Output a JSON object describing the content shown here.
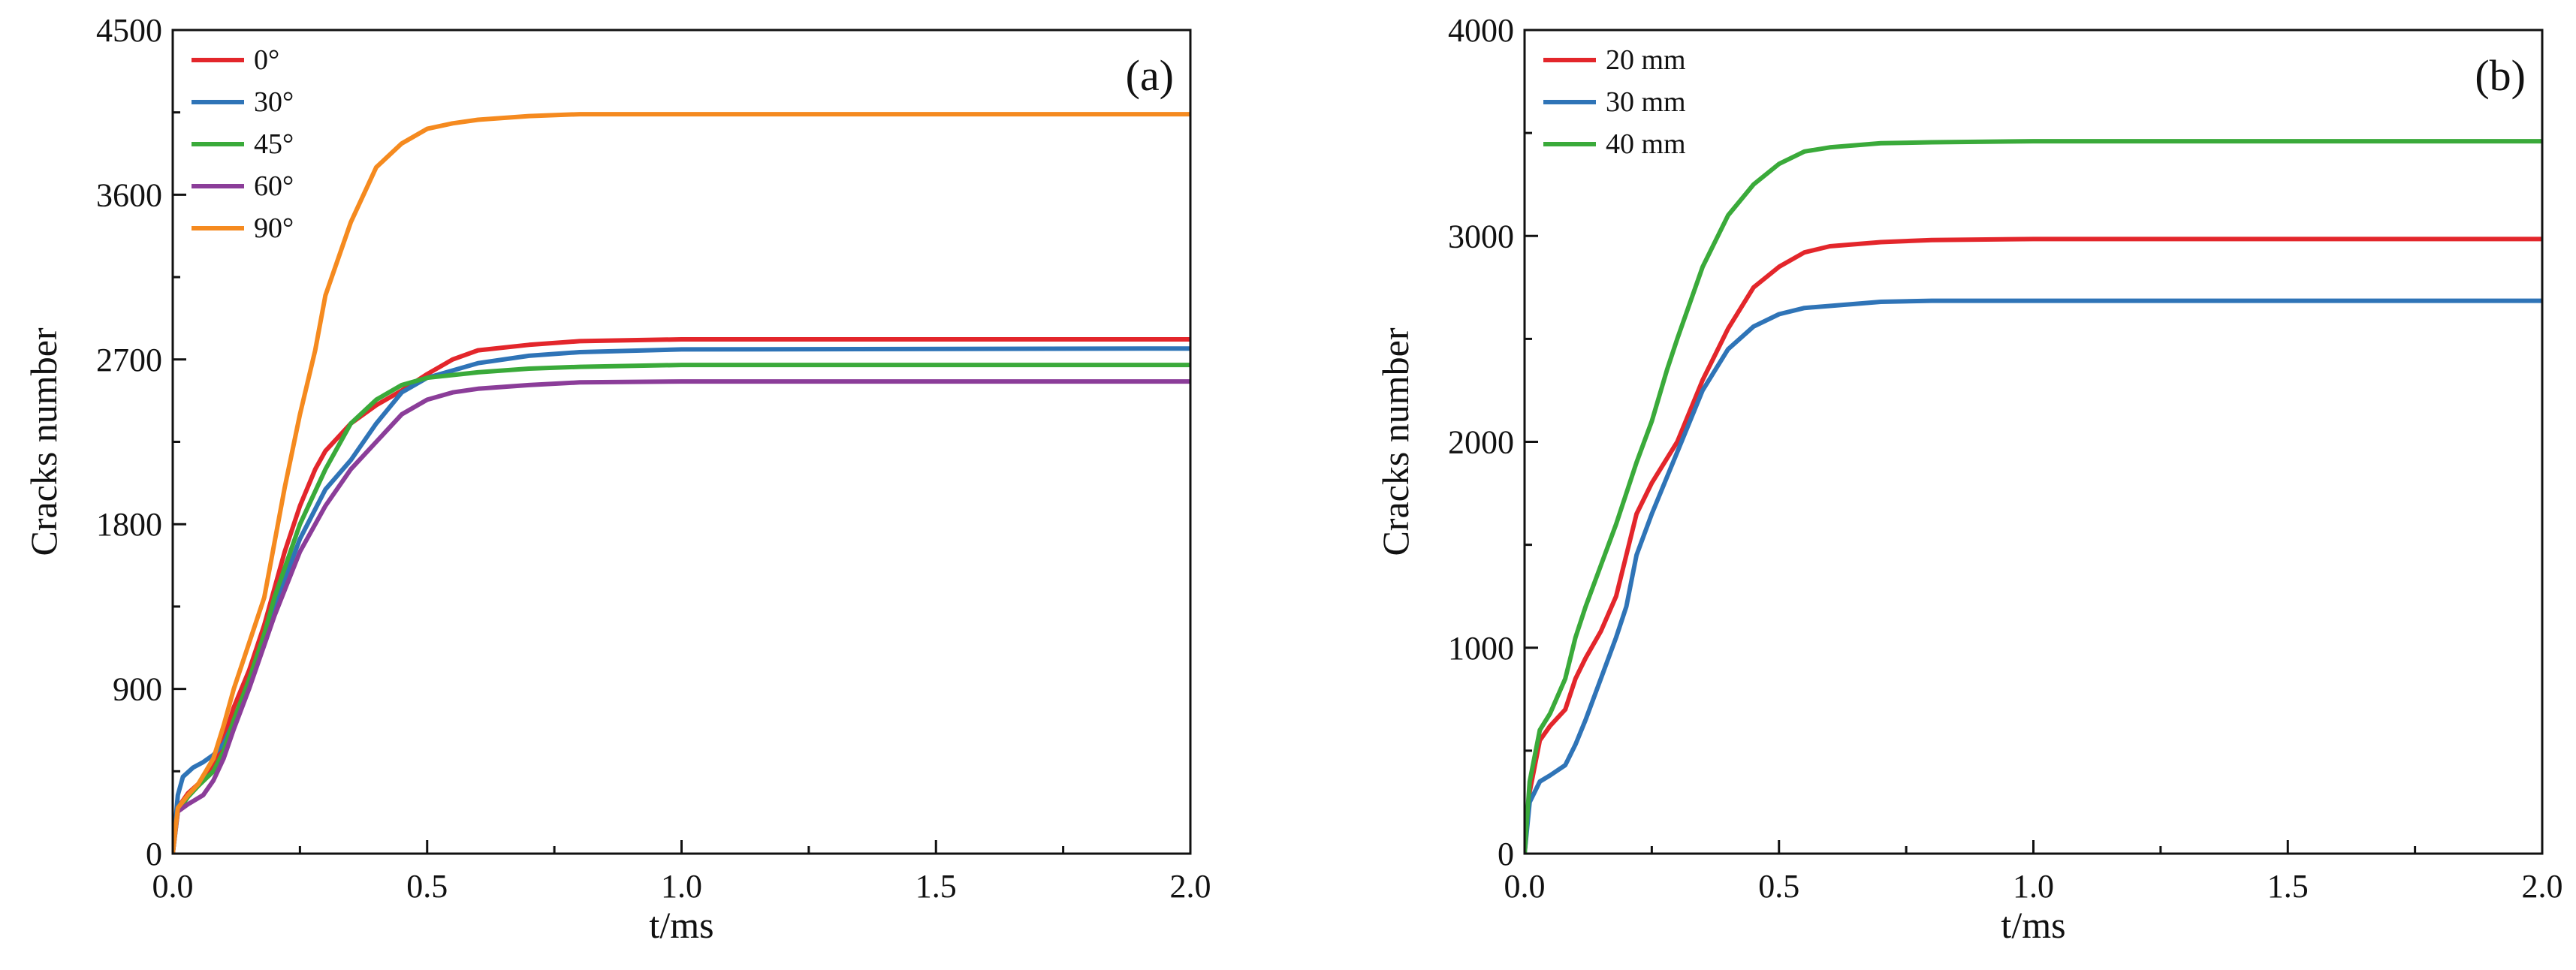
{
  "chart_data": [
    {
      "type": "line",
      "panel_label": "(a)",
      "xlabel": "t/ms",
      "ylabel": "Cracks number",
      "xlim": [
        0,
        2.0
      ],
      "ylim": [
        0,
        4500
      ],
      "xticks": [
        0.0,
        0.5,
        1.0,
        1.5,
        2.0
      ],
      "xtick_labels": [
        "0.0",
        "0.5",
        "1.0",
        "1.5",
        "2.0"
      ],
      "yticks": [
        0,
        900,
        1800,
        2700,
        3600,
        4500
      ],
      "ytick_labels": [
        "0",
        "900",
        "1800",
        "2700",
        "3600",
        "4500"
      ],
      "legend_position": "top-left",
      "grid": false,
      "series": [
        {
          "name": "0°",
          "color": "#e3262b",
          "points": [
            [
              0,
              0
            ],
            [
              0.01,
              250
            ],
            [
              0.03,
              330
            ],
            [
              0.05,
              380
            ],
            [
              0.08,
              480
            ],
            [
              0.1,
              620
            ],
            [
              0.12,
              800
            ],
            [
              0.15,
              1000
            ],
            [
              0.18,
              1250
            ],
            [
              0.2,
              1450
            ],
            [
              0.22,
              1650
            ],
            [
              0.25,
              1900
            ],
            [
              0.28,
              2100
            ],
            [
              0.3,
              2200
            ],
            [
              0.35,
              2350
            ],
            [
              0.4,
              2450
            ],
            [
              0.45,
              2530
            ],
            [
              0.5,
              2620
            ],
            [
              0.55,
              2700
            ],
            [
              0.6,
              2750
            ],
            [
              0.7,
              2780
            ],
            [
              0.8,
              2800
            ],
            [
              1.0,
              2810
            ],
            [
              2.0,
              2810
            ]
          ]
        },
        {
          "name": "30°",
          "color": "#2f74b7",
          "points": [
            [
              0,
              0
            ],
            [
              0.01,
              320
            ],
            [
              0.02,
              420
            ],
            [
              0.04,
              470
            ],
            [
              0.06,
              500
            ],
            [
              0.08,
              540
            ],
            [
              0.1,
              600
            ],
            [
              0.12,
              720
            ],
            [
              0.15,
              950
            ],
            [
              0.2,
              1350
            ],
            [
              0.25,
              1720
            ],
            [
              0.3,
              1990
            ],
            [
              0.35,
              2150
            ],
            [
              0.4,
              2350
            ],
            [
              0.45,
              2520
            ],
            [
              0.5,
              2600
            ],
            [
              0.6,
              2680
            ],
            [
              0.7,
              2720
            ],
            [
              0.8,
              2740
            ],
            [
              1.0,
              2755
            ],
            [
              2.0,
              2760
            ]
          ]
        },
        {
          "name": "45°",
          "color": "#3aaa3a",
          "points": [
            [
              0,
              0
            ],
            [
              0.01,
              230
            ],
            [
              0.03,
              310
            ],
            [
              0.05,
              370
            ],
            [
              0.08,
              450
            ],
            [
              0.1,
              560
            ],
            [
              0.12,
              730
            ],
            [
              0.15,
              950
            ],
            [
              0.18,
              1200
            ],
            [
              0.2,
              1400
            ],
            [
              0.25,
              1800
            ],
            [
              0.3,
              2100
            ],
            [
              0.35,
              2350
            ],
            [
              0.4,
              2480
            ],
            [
              0.45,
              2560
            ],
            [
              0.5,
              2600
            ],
            [
              0.6,
              2630
            ],
            [
              0.7,
              2650
            ],
            [
              0.8,
              2660
            ],
            [
              1.0,
              2670
            ],
            [
              2.0,
              2670
            ]
          ]
        },
        {
          "name": "60°",
          "color": "#8b3d99",
          "points": [
            [
              0,
              0
            ],
            [
              0.01,
              230
            ],
            [
              0.03,
              270
            ],
            [
              0.06,
              320
            ],
            [
              0.08,
              400
            ],
            [
              0.1,
              520
            ],
            [
              0.12,
              680
            ],
            [
              0.15,
              900
            ],
            [
              0.2,
              1300
            ],
            [
              0.25,
              1650
            ],
            [
              0.3,
              1900
            ],
            [
              0.35,
              2100
            ],
            [
              0.4,
              2250
            ],
            [
              0.45,
              2400
            ],
            [
              0.5,
              2480
            ],
            [
              0.55,
              2520
            ],
            [
              0.6,
              2540
            ],
            [
              0.7,
              2560
            ],
            [
              0.8,
              2575
            ],
            [
              1.0,
              2580
            ],
            [
              2.0,
              2580
            ]
          ]
        },
        {
          "name": "90°",
          "color": "#f58a1f",
          "points": [
            [
              0,
              0
            ],
            [
              0.01,
              250
            ],
            [
              0.03,
              320
            ],
            [
              0.05,
              380
            ],
            [
              0.08,
              520
            ],
            [
              0.1,
              700
            ],
            [
              0.12,
              900
            ],
            [
              0.15,
              1150
            ],
            [
              0.18,
              1400
            ],
            [
              0.2,
              1700
            ],
            [
              0.22,
              2000
            ],
            [
              0.25,
              2400
            ],
            [
              0.28,
              2750
            ],
            [
              0.3,
              3050
            ],
            [
              0.35,
              3450
            ],
            [
              0.4,
              3750
            ],
            [
              0.45,
              3880
            ],
            [
              0.5,
              3960
            ],
            [
              0.55,
              3990
            ],
            [
              0.6,
              4010
            ],
            [
              0.7,
              4030
            ],
            [
              0.8,
              4040
            ],
            [
              1.0,
              4040
            ],
            [
              2.0,
              4040
            ]
          ]
        }
      ]
    },
    {
      "type": "line",
      "panel_label": "(b)",
      "xlabel": "t/ms",
      "ylabel": "Cracks number",
      "xlim": [
        0,
        2.0
      ],
      "ylim": [
        0,
        4000
      ],
      "xticks": [
        0.0,
        0.5,
        1.0,
        1.5,
        2.0
      ],
      "xtick_labels": [
        "0.0",
        "0.5",
        "1.0",
        "1.5",
        "2.0"
      ],
      "yticks": [
        0,
        1000,
        2000,
        3000,
        4000
      ],
      "ytick_labels": [
        "0",
        "1000",
        "2000",
        "3000",
        "4000"
      ],
      "legend_position": "top-left",
      "grid": false,
      "series": [
        {
          "name": "20 mm",
          "color": "#e3262b",
          "points": [
            [
              0,
              0
            ],
            [
              0.01,
              300
            ],
            [
              0.03,
              550
            ],
            [
              0.05,
              620
            ],
            [
              0.08,
              700
            ],
            [
              0.1,
              850
            ],
            [
              0.12,
              950
            ],
            [
              0.15,
              1080
            ],
            [
              0.18,
              1250
            ],
            [
              0.2,
              1450
            ],
            [
              0.22,
              1650
            ],
            [
              0.25,
              1800
            ],
            [
              0.3,
              2000
            ],
            [
              0.35,
              2300
            ],
            [
              0.4,
              2550
            ],
            [
              0.45,
              2750
            ],
            [
              0.5,
              2850
            ],
            [
              0.55,
              2920
            ],
            [
              0.6,
              2950
            ],
            [
              0.7,
              2970
            ],
            [
              0.8,
              2980
            ],
            [
              1.0,
              2985
            ],
            [
              2.0,
              2985
            ]
          ]
        },
        {
          "name": "30 mm",
          "color": "#2f74b7",
          "points": [
            [
              0,
              0
            ],
            [
              0.01,
              250
            ],
            [
              0.03,
              350
            ],
            [
              0.05,
              380
            ],
            [
              0.08,
              430
            ],
            [
              0.1,
              530
            ],
            [
              0.12,
              650
            ],
            [
              0.15,
              850
            ],
            [
              0.18,
              1050
            ],
            [
              0.2,
              1200
            ],
            [
              0.22,
              1450
            ],
            [
              0.25,
              1650
            ],
            [
              0.3,
              1950
            ],
            [
              0.35,
              2250
            ],
            [
              0.4,
              2450
            ],
            [
              0.45,
              2560
            ],
            [
              0.5,
              2620
            ],
            [
              0.55,
              2650
            ],
            [
              0.6,
              2660
            ],
            [
              0.7,
              2680
            ],
            [
              0.8,
              2685
            ],
            [
              1.0,
              2685
            ],
            [
              2.0,
              2685
            ]
          ]
        },
        {
          "name": "40 mm",
          "color": "#3aaa3a",
          "points": [
            [
              0,
              0
            ],
            [
              0.01,
              350
            ],
            [
              0.03,
              600
            ],
            [
              0.05,
              680
            ],
            [
              0.08,
              850
            ],
            [
              0.1,
              1050
            ],
            [
              0.12,
              1200
            ],
            [
              0.15,
              1400
            ],
            [
              0.18,
              1600
            ],
            [
              0.2,
              1750
            ],
            [
              0.22,
              1900
            ],
            [
              0.25,
              2100
            ],
            [
              0.28,
              2350
            ],
            [
              0.3,
              2500
            ],
            [
              0.35,
              2850
            ],
            [
              0.4,
              3100
            ],
            [
              0.45,
              3250
            ],
            [
              0.5,
              3350
            ],
            [
              0.55,
              3410
            ],
            [
              0.6,
              3430
            ],
            [
              0.7,
              3450
            ],
            [
              0.8,
              3455
            ],
            [
              1.0,
              3460
            ],
            [
              2.0,
              3460
            ]
          ]
        }
      ]
    }
  ]
}
